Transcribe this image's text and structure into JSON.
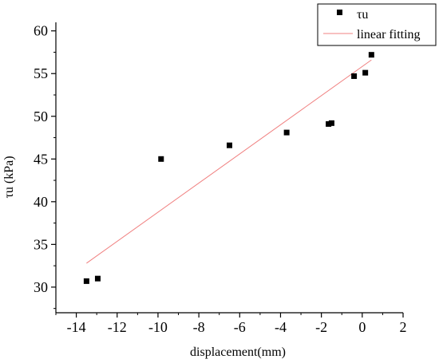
{
  "chart_data": {
    "type": "scatter",
    "xlabel": "displacement(mm)",
    "ylabel": "τu (kPa)",
    "xlim": [
      -15,
      2
    ],
    "ylim": [
      27,
      61
    ],
    "xticks": [
      -14,
      -12,
      -10,
      -8,
      -6,
      -4,
      -2,
      0,
      2
    ],
    "yticks": [
      30,
      35,
      40,
      45,
      50,
      55,
      60
    ],
    "xtick_labels": [
      "-14",
      "-12",
      "-10",
      "-8",
      "-6",
      "-4",
      "-2",
      "0",
      "2"
    ],
    "ytick_labels": [
      "30",
      "35",
      "40",
      "45",
      "50",
      "55",
      "60"
    ],
    "grid": false,
    "legend_position": "top-right",
    "series": [
      {
        "name": "τu",
        "kind": "scatter",
        "marker": "square",
        "color": "#000000",
        "x": [
          -13.5,
          -12.95,
          -9.85,
          -6.5,
          -3.7,
          -1.65,
          -1.5,
          -0.4,
          0.15,
          0.45
        ],
        "y": [
          30.7,
          31.0,
          45.0,
          46.6,
          48.1,
          49.1,
          49.2,
          54.7,
          55.1,
          57.2
        ]
      },
      {
        "name": "linear fitting",
        "kind": "line",
        "color": "#f08080",
        "x": [
          -13.5,
          0.45
        ],
        "y": [
          32.8,
          56.6
        ]
      }
    ]
  }
}
